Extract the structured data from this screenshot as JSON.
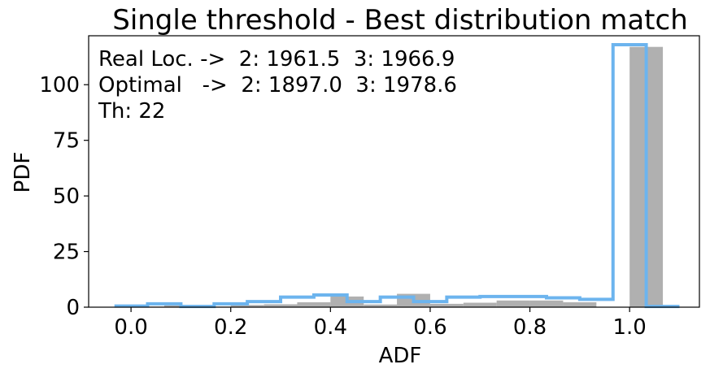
{
  "chart_data": {
    "type": "histogram",
    "title": "Single threshold - Best distribution match",
    "xlabel": "ADF",
    "ylabel": "PDF",
    "xlim": [
      -0.085,
      1.14
    ],
    "ylim": [
      0,
      122
    ],
    "xticks": [
      0.0,
      0.2,
      0.4,
      0.6,
      0.8,
      1.0
    ],
    "xtick_labels": [
      "0.0",
      "0.2",
      "0.4",
      "0.6",
      "0.8",
      "1.0"
    ],
    "yticks": [
      0,
      25,
      50,
      75,
      100
    ],
    "ytick_labels": [
      "0",
      "25",
      "50",
      "75",
      "100"
    ],
    "grid": false,
    "legend": "none",
    "annotations": [
      "Real Loc. ->  2: 1961.5  3: 1966.9",
      "Optimal   ->  2: 1897.0  3: 1978.6",
      "Th: 22"
    ],
    "series": [
      {
        "style": "filled-bars",
        "color": "#b0b0b0",
        "bin_edges": [
          0.0,
          0.0667,
          0.1333,
          0.2,
          0.2667,
          0.3333,
          0.4,
          0.4667,
          0.5333,
          0.6,
          0.6667,
          0.7333,
          0.8,
          0.8667,
          0.9333,
          1.0
        ],
        "values": [
          0,
          1,
          0,
          1,
          1,
          2,
          5,
          1,
          6,
          1,
          2,
          3,
          3,
          2,
          2
        ],
        "bar_x": [
          0.0,
          0.0667,
          0.1333,
          0.2,
          0.2667,
          0.3333,
          0.4,
          0.4667,
          0.5333,
          0.6,
          0.6667,
          0.7333,
          0.8,
          0.8667,
          1.0
        ],
        "bar_width": 0.0667,
        "bar_heights": [
          0.3,
          0.8,
          0.3,
          1.0,
          1.3,
          2.2,
          4.8,
          1.2,
          6.0,
          1.5,
          2.0,
          3.0,
          3.0,
          2.2,
          117.0
        ]
      },
      {
        "style": "step-outline",
        "color": "#6cb4ee",
        "bin_edges": [
          -0.0333,
          0.0333,
          0.1,
          0.1667,
          0.2333,
          0.3,
          0.3667,
          0.4333,
          0.5,
          0.5667,
          0.6333,
          0.7,
          0.7667,
          0.8333,
          0.9,
          0.9667,
          1.0333,
          1.1
        ],
        "values": [
          0.5,
          1.5,
          0.3,
          1.5,
          2.5,
          4.5,
          5.5,
          2.5,
          4.5,
          2.5,
          4.5,
          4.8,
          4.8,
          4.2,
          3.5,
          118.0,
          0.3
        ]
      }
    ]
  }
}
